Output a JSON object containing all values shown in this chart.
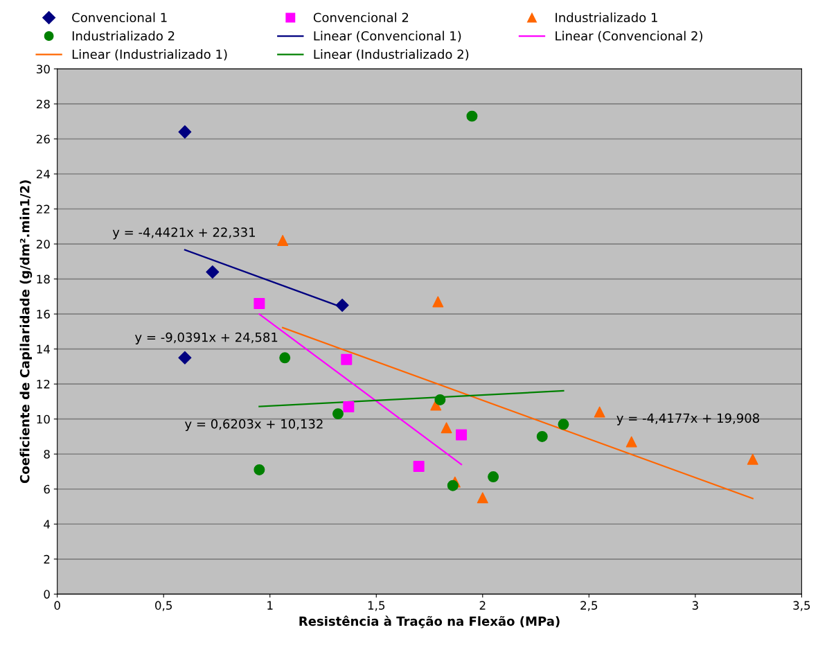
{
  "chart_data": {
    "type": "scatter",
    "xlabel": "Resistência à Tração na Flexão (MPa)",
    "ylabel": "Coeficiente de Capilaridade (g/dm².min1/2)",
    "xlim": [
      0,
      3.5
    ],
    "ylim": [
      0,
      30
    ],
    "xticks": [
      0,
      {
        "value": 0.5,
        "label": "0,5"
      },
      1,
      {
        "value": 1.5,
        "label": "1,5"
      },
      2,
      {
        "value": 2.5,
        "label": "2,5"
      },
      3,
      {
        "value": 3.5,
        "label": "3,5"
      }
    ],
    "yticks": [
      0,
      2,
      4,
      6,
      8,
      10,
      12,
      14,
      16,
      18,
      20,
      22,
      24,
      26,
      28,
      30
    ],
    "grid": "y",
    "legend": "top",
    "series": [
      {
        "name": "Convencional 1",
        "color": "#000080",
        "marker": "diamond",
        "x": [
          0.6,
          0.73,
          1.34,
          0.6
        ],
        "values": [
          26.4,
          18.4,
          16.5,
          13.5
        ]
      },
      {
        "name": "Convencional 2",
        "color": "#ff00ff",
        "marker": "square",
        "x": [
          0.95,
          1.36,
          1.37,
          1.9,
          1.7
        ],
        "values": [
          16.6,
          13.4,
          10.7,
          9.1,
          7.3
        ]
      },
      {
        "name": "Industrializado 1",
        "color": "#ff6600",
        "marker": "triangle",
        "x": [
          1.06,
          1.79,
          1.78,
          1.83,
          1.87,
          2.0,
          2.55,
          2.7,
          3.27
        ],
        "values": [
          20.2,
          16.7,
          10.8,
          9.5,
          6.4,
          5.5,
          10.4,
          8.7,
          7.7
        ]
      },
      {
        "name": "Industrializado 2",
        "color": "#008000",
        "marker": "circle",
        "x": [
          0.95,
          1.07,
          1.32,
          1.8,
          1.95,
          1.86,
          2.05,
          2.28,
          2.38
        ],
        "values": [
          7.1,
          13.5,
          10.3,
          11.1,
          27.3,
          6.2,
          6.7,
          9.0,
          9.7
        ]
      },
      {
        "name": "Linear (Convencional 1)",
        "type": "line",
        "color": "#000080",
        "marker": "none",
        "x": [
          0.6,
          1.34
        ],
        "values": [
          19.66,
          16.38
        ]
      },
      {
        "name": "Linear (Convencional 2)",
        "type": "line",
        "color": "#ff00ff",
        "marker": "none",
        "x": [
          0.95,
          1.9
        ],
        "values": [
          15.99,
          7.41
        ]
      },
      {
        "name": "Linear (Industrializado 1)",
        "type": "line",
        "color": "#ff6600",
        "marker": "none",
        "x": [
          1.06,
          3.27
        ],
        "values": [
          15.22,
          5.46
        ]
      },
      {
        "name": "Linear (Industrializado 2)",
        "type": "line",
        "color": "#008000",
        "marker": "none",
        "x": [
          0.95,
          2.38
        ],
        "values": [
          10.72,
          11.61
        ]
      }
    ],
    "annotations": [
      "y = -4,4421x + 22,331",
      "y = -9,0391x + 24,581",
      "y = 0,6203x + 10,132",
      "y = -4,4177x + 19,908"
    ]
  }
}
